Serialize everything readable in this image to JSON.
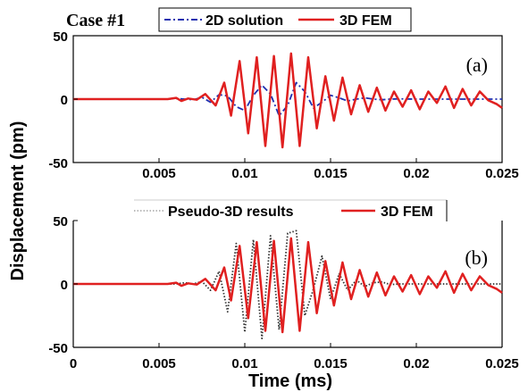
{
  "figure": {
    "case_label": "Case #1",
    "ylabel": "Displacement (pm)",
    "xlabel": "Time (ms)"
  },
  "chart_data": [
    {
      "type": "line",
      "panel_label": "(a)",
      "xlim": [
        0,
        0.025
      ],
      "ylim": [
        -50,
        50
      ],
      "xticks": [
        "0.005",
        "0.01",
        "0.015",
        "0.02",
        "0.025"
      ],
      "xtick_values": [
        0.005,
        0.01,
        0.015,
        0.02,
        0.025
      ],
      "yticks": [
        "50",
        "0",
        "-50"
      ],
      "ytick_values": [
        50,
        0,
        -50
      ],
      "grid": false,
      "legend_position": "top-center",
      "series": [
        {
          "name": "2D solution",
          "color": "#1f2fb0",
          "style": "dash-dot",
          "x": [
            0,
            0.0055,
            0.006,
            0.0065,
            0.007,
            0.0075,
            0.008,
            0.0085,
            0.009,
            0.0095,
            0.01,
            0.0105,
            0.011,
            0.0115,
            0.012,
            0.0125,
            0.013,
            0.0135,
            0.014,
            0.0145,
            0.015,
            0.0155,
            0.016,
            0.0165,
            0.017,
            0.0175,
            0.018,
            0.0185,
            0.019,
            0.02,
            0.025
          ],
          "y": [
            0,
            0,
            0.5,
            0,
            -0.5,
            1.5,
            -2.5,
            3.5,
            2.5,
            -6,
            -9,
            3,
            11,
            4,
            -13,
            -5,
            13,
            6,
            -7,
            -2.5,
            3,
            1,
            -1.5,
            0,
            1,
            0,
            -0.5,
            0,
            0.2,
            0,
            0
          ]
        },
        {
          "name": "3D FEM",
          "color": "#e02020",
          "style": "solid",
          "x": [
            0,
            0.0055,
            0.006,
            0.0063,
            0.0067,
            0.0072,
            0.0077,
            0.0083,
            0.0088,
            0.0092,
            0.0097,
            0.0102,
            0.0107,
            0.0112,
            0.0117,
            0.0122,
            0.0127,
            0.0132,
            0.0137,
            0.0142,
            0.0147,
            0.0152,
            0.0157,
            0.0162,
            0.0167,
            0.0172,
            0.0177,
            0.0182,
            0.0187,
            0.0192,
            0.0197,
            0.0202,
            0.0207,
            0.0212,
            0.0217,
            0.0222,
            0.0227,
            0.0232,
            0.0237,
            0.0242,
            0.0247,
            0.025
          ],
          "y": [
            0,
            0,
            1,
            -1.5,
            0.5,
            -0.5,
            4,
            -5,
            13,
            -13,
            30,
            -27,
            33,
            -37,
            34,
            -38,
            36,
            -37,
            33,
            -23,
            18,
            -17,
            17,
            -12,
            11,
            -10,
            9,
            -9,
            6,
            -6,
            7,
            -8,
            6,
            -3,
            10,
            -7,
            8,
            -5,
            6,
            -1,
            -4,
            -7
          ]
        }
      ]
    },
    {
      "type": "line",
      "panel_label": "(b)",
      "xlim": [
        0,
        0.025
      ],
      "ylim": [
        -50,
        50
      ],
      "xticks": [
        "0",
        "0.005",
        "0.01",
        "0.015",
        "0.02",
        "0.025"
      ],
      "xtick_values": [
        0,
        0.005,
        0.01,
        0.015,
        0.02,
        0.025
      ],
      "yticks": [
        "50",
        "0",
        "-50"
      ],
      "ytick_values": [
        50,
        0,
        -50
      ],
      "grid": false,
      "legend_position": "top-center",
      "series": [
        {
          "name": "Pseudo-3D results",
          "color": "#333333",
          "style": "dotted",
          "x": [
            0,
            0.006,
            0.0065,
            0.007,
            0.0075,
            0.008,
            0.0085,
            0.009,
            0.0095,
            0.01,
            0.0105,
            0.011,
            0.0115,
            0.012,
            0.0125,
            0.013,
            0.0135,
            0.014,
            0.0145,
            0.015,
            0.0155,
            0.016,
            0.0165,
            0.017,
            0.0175,
            0.018,
            0.0185,
            0.019,
            0.02,
            0.025
          ],
          "y": [
            0,
            0,
            1,
            0,
            2,
            -5,
            10,
            -22,
            32,
            -38,
            35,
            -43,
            38,
            -36,
            40,
            42,
            -25,
            -4,
            22,
            -12,
            8,
            -5,
            3,
            -2,
            1,
            1.5,
            -0.5,
            0,
            0,
            0
          ]
        },
        {
          "name": "3D FEM",
          "color": "#e02020",
          "style": "solid",
          "x": [
            0,
            0.0055,
            0.006,
            0.0063,
            0.0067,
            0.0072,
            0.0077,
            0.0083,
            0.0088,
            0.0092,
            0.0097,
            0.0102,
            0.0107,
            0.0112,
            0.0117,
            0.0122,
            0.0127,
            0.0132,
            0.0137,
            0.0142,
            0.0147,
            0.0152,
            0.0157,
            0.0162,
            0.0167,
            0.0172,
            0.0177,
            0.0182,
            0.0187,
            0.0192,
            0.0197,
            0.0202,
            0.0207,
            0.0212,
            0.0217,
            0.0222,
            0.0227,
            0.0232,
            0.0237,
            0.0242,
            0.0247,
            0.025
          ],
          "y": [
            0,
            0,
            1,
            -1.5,
            0.5,
            -0.5,
            4,
            -5,
            13,
            -13,
            30,
            -27,
            33,
            -37,
            34,
            -38,
            36,
            -37,
            33,
            -23,
            18,
            -17,
            17,
            -12,
            11,
            -10,
            9,
            -9,
            6,
            -6,
            7,
            -8,
            6,
            -3,
            10,
            -7,
            8,
            -5,
            6,
            -1,
            -4,
            -7
          ]
        }
      ]
    }
  ]
}
